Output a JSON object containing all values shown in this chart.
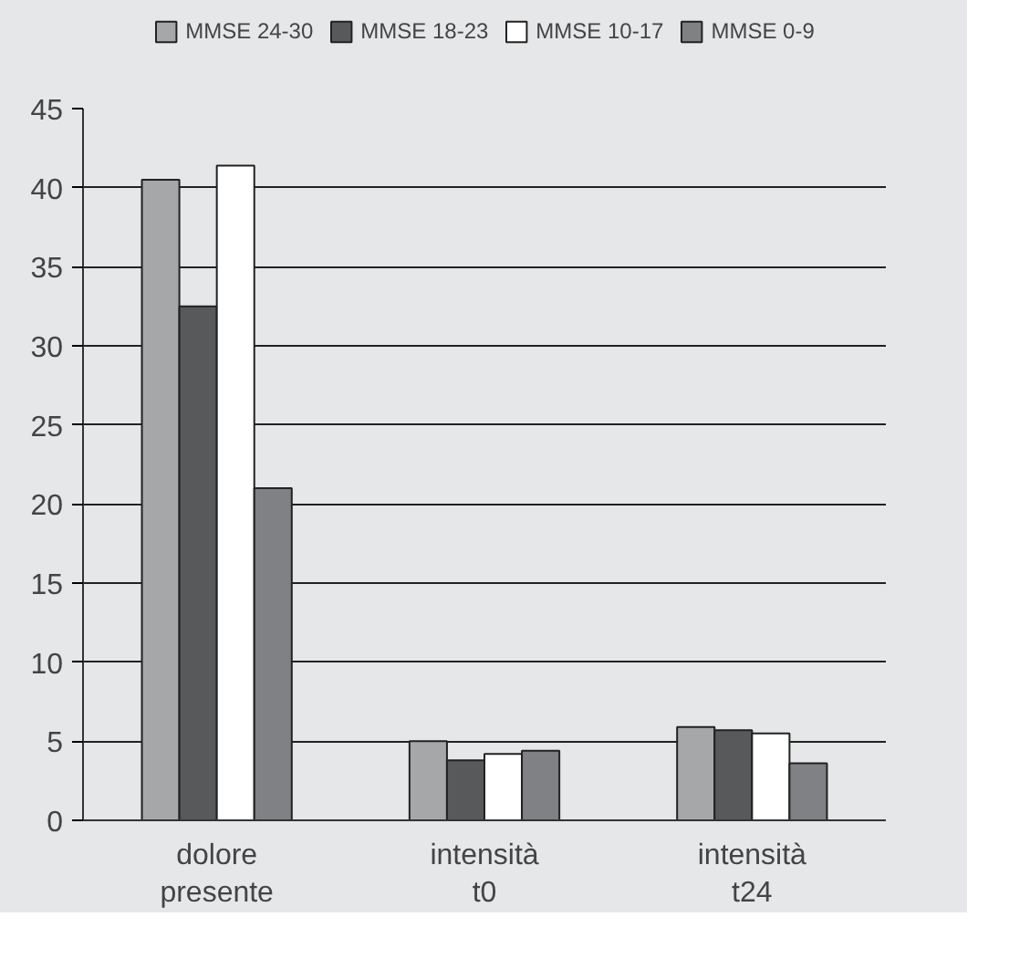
{
  "chart_data": {
    "type": "bar",
    "categories": [
      "dolore\npresente",
      "intensità\nt0",
      "intensità\nt24"
    ],
    "series": [
      {
        "name": "MMSE 24-30",
        "color": "#a6a7a9",
        "values": [
          40.5,
          5.0,
          5.9
        ]
      },
      {
        "name": "MMSE 18-23",
        "color": "#58595b",
        "values": [
          32.5,
          3.8,
          5.7
        ]
      },
      {
        "name": "MMSE 10-17",
        "color": "#ffffff",
        "values": [
          41.4,
          4.2,
          5.5
        ]
      },
      {
        "name": "MMSE 0-9",
        "color": "#808184",
        "values": [
          21.0,
          4.4,
          3.6
        ]
      }
    ],
    "ylim": [
      0,
      45
    ],
    "yticks": [
      0,
      5,
      10,
      15,
      20,
      25,
      30,
      35,
      40,
      45
    ],
    "grid": "y",
    "legend": "top"
  }
}
